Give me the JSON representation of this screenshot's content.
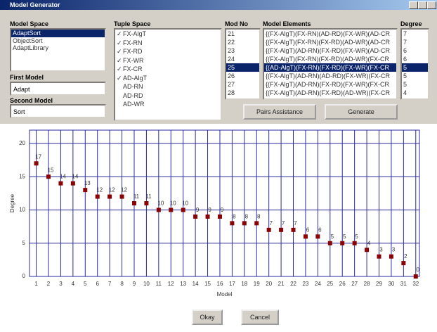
{
  "window": {
    "title": "Model Generator"
  },
  "model_space": {
    "label": "Model Space",
    "items": [
      "AdaptSort",
      "ObjectSort",
      "AdaptLibrary"
    ],
    "selected": 0
  },
  "tuple_space": {
    "label": "Tuple Space",
    "items": [
      {
        "name": "FX-AlgT",
        "checked": true
      },
      {
        "name": "FX-RN",
        "checked": true
      },
      {
        "name": "FX-RD",
        "checked": true
      },
      {
        "name": "FX-WR",
        "checked": true
      },
      {
        "name": "FX-CR",
        "checked": true
      },
      {
        "name": "AD-AlgT",
        "checked": true
      },
      {
        "name": "AD-RN",
        "checked": false
      },
      {
        "name": "AD-RD",
        "checked": false
      },
      {
        "name": "AD-WR",
        "checked": false
      }
    ]
  },
  "first_model": {
    "label": "First Model",
    "value": "Adapt"
  },
  "second_model": {
    "label": "Second Model",
    "value": "Sort"
  },
  "models": {
    "headers": [
      "Mod No",
      "Model Elements",
      "Degree"
    ],
    "selected": 4,
    "rows": [
      [
        "21",
        "{(FX-AlgT)(FX-RN)(AD-RD)(FX-WR)(AD-CR",
        "7"
      ],
      [
        "22",
        "{(FX-AlgT)(FX-RN)(FX-RD)(AD-WR)(AD-CR",
        "7"
      ],
      [
        "23",
        "{(FX-AlgT)(AD-RN)(FX-RD)(FX-WR)(AD-CR",
        "6"
      ],
      [
        "24",
        "{(FX-AlgT)(FX-RN)(FX-RD)(AD-WR)(FX-CR",
        "6"
      ],
      [
        "25",
        "{(AD-AlgT)(FX-RN)(FX-RD)(FX-WR)(FX-CR",
        "5"
      ],
      [
        "26",
        "{(FX-AlgT)(AD-RN)(AD-RD)(FX-WR)(FX-CR",
        "5"
      ],
      [
        "27",
        "{(FX-AlgT)(AD-RN)(FX-RD)(FX-WR)(FX-CR",
        "5"
      ],
      [
        "28",
        "{(FX-AlgT)(AD-RN)(FX-RD)(AD-WR)(FX-CR",
        "4"
      ]
    ]
  },
  "buttons": [
    "Pairs Assistance",
    "Generate",
    "Okay",
    "Cancel"
  ],
  "chart_data": {
    "type": "scatter",
    "x_label": "Model",
    "y_label": "Degree",
    "color": "#8b0000",
    "grid": true,
    "x": [
      1,
      2,
      3,
      4,
      5,
      6,
      7,
      8,
      9,
      10,
      11,
      12,
      13,
      14,
      15,
      16,
      17,
      18,
      19,
      20,
      21,
      22,
      23,
      24,
      25,
      26,
      27,
      28,
      29,
      30,
      31,
      32
    ],
    "values": [
      17,
      15,
      14,
      14,
      13,
      12,
      12,
      12,
      11,
      11,
      10,
      10,
      10,
      9,
      9,
      9,
      8,
      8,
      8,
      7,
      7,
      7,
      6,
      6,
      5,
      5,
      5,
      4,
      3,
      3,
      2,
      0
    ],
    "xlim": [
      0.45,
      32.3
    ],
    "ylim": [
      0,
      22
    ],
    "xticks": [
      1,
      2,
      3,
      4,
      5,
      6,
      7,
      8,
      9,
      10,
      11,
      12,
      13,
      14,
      15,
      16,
      17,
      18,
      19,
      20,
      21,
      22,
      23,
      24,
      25,
      26,
      27,
      28,
      29,
      30,
      31,
      32
    ],
    "yticks": [
      0,
      5,
      10,
      15,
      20
    ]
  }
}
